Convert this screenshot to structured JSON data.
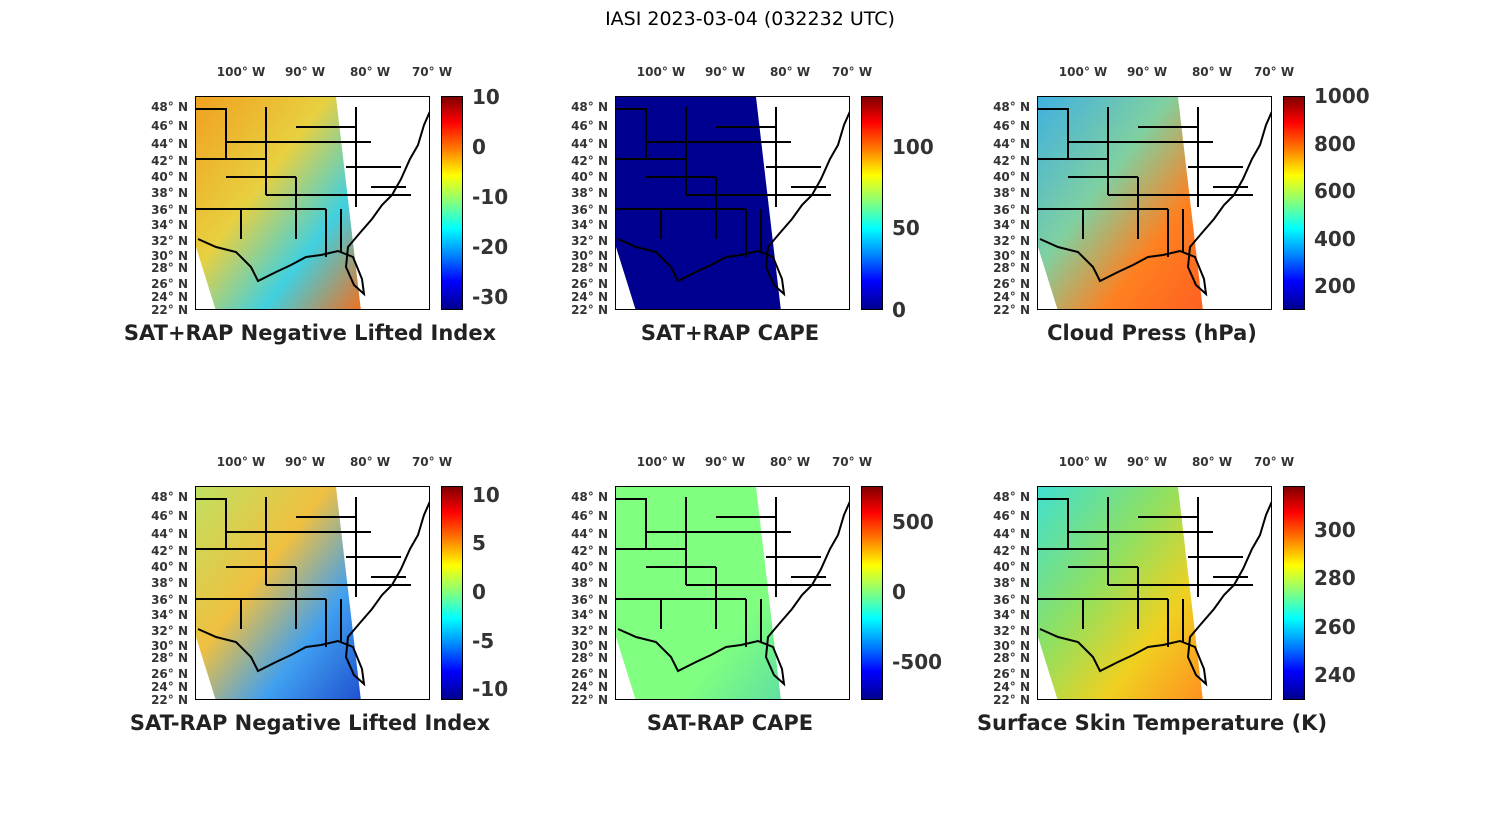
{
  "figure_title": "IASI 2023-03-04 (032232 UTC)",
  "lon_labels": [
    "100° W",
    "90° W",
    "80° W",
    "70° W"
  ],
  "lat_labels": [
    "48° N",
    "46° N",
    "44° N",
    "42° N",
    "40° N",
    "38° N",
    "36° N",
    "34° N",
    "32° N",
    "30° N",
    "28° N",
    "26° N",
    "24° N",
    "22° N"
  ],
  "panels": [
    {
      "title": "SAT+RAP Negative Lifted Index",
      "clim": [
        -32.6,
        10.2
      ],
      "ticks": [
        10,
        0,
        -10,
        -20,
        -30
      ],
      "tick_labels": [
        "10",
        "0",
        "-10",
        "-20",
        "-30"
      ],
      "swath": [
        "#f0a020",
        "#e8d040",
        "#40d0e0",
        "#f07020"
      ]
    },
    {
      "title": "SAT+RAP CAPE",
      "clim": [
        0,
        131
      ],
      "ticks": [
        100,
        50,
        0
      ],
      "tick_labels": [
        "100",
        "50",
        "0"
      ],
      "swath": [
        "#000090",
        "#000090",
        "#000090",
        "#000090"
      ]
    },
    {
      "title": "Cloud Press (hPa)",
      "clim": [
        100,
        1000
      ],
      "ticks": [
        1000,
        800,
        600,
        400,
        200
      ],
      "tick_labels": [
        "1000",
        "800",
        "600",
        "400",
        "200"
      ],
      "swath": [
        "#40b0e0",
        "#80d0a0",
        "#ff8020",
        "#ff6020"
      ]
    },
    {
      "title": "SAT-RAP Negative Lifted Index",
      "clim": [
        -11.1,
        10.9
      ],
      "ticks": [
        10,
        5,
        0,
        -5,
        -10
      ],
      "tick_labels": [
        "10",
        "5",
        "0",
        "-5",
        "-10"
      ],
      "swath": [
        "#c0e060",
        "#f0c040",
        "#40a0f0",
        "#2050d0"
      ]
    },
    {
      "title": "SAT-RAP CAPE",
      "clim": [
        -771,
        757
      ],
      "ticks": [
        500,
        0,
        -500
      ],
      "tick_labels": [
        "500",
        "0",
        "-500"
      ],
      "swath": [
        "#80ff80",
        "#80ff80",
        "#80ff80",
        "#60e0a0"
      ]
    },
    {
      "title": "Surface Skin Temperature (K)",
      "clim": [
        229.7,
        318
      ],
      "ticks": [
        300,
        280,
        260,
        240
      ],
      "tick_labels": [
        "300",
        "280",
        "260",
        "240"
      ],
      "swath": [
        "#40e0d0",
        "#90e060",
        "#f0d020",
        "#ff9020"
      ]
    }
  ]
}
